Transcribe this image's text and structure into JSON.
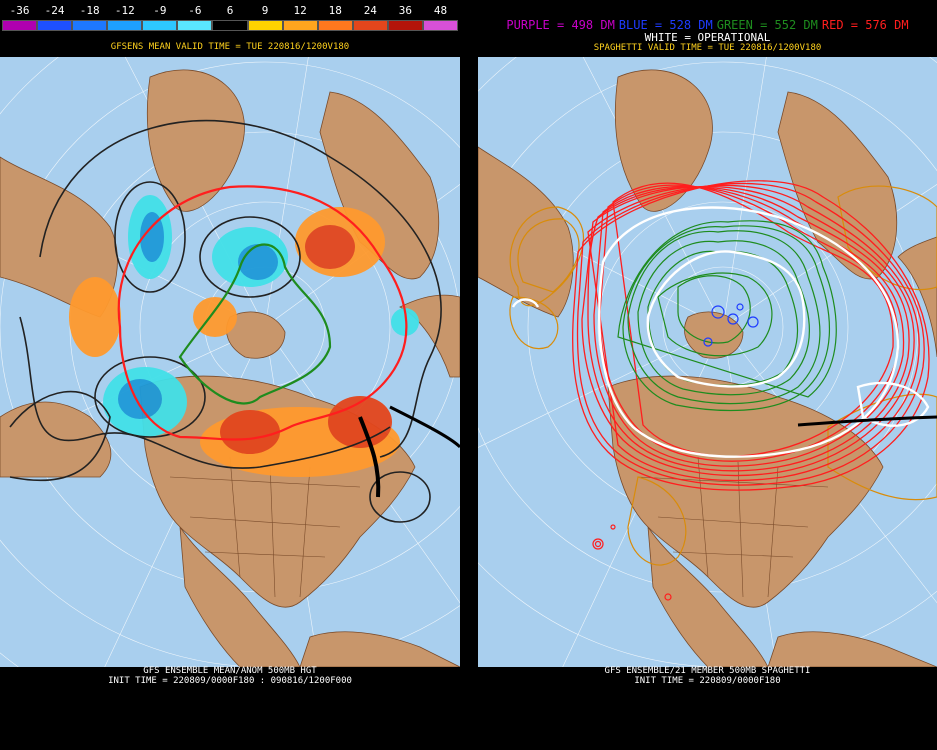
{
  "colors": {
    "ocean": "#a9cfee",
    "land": "#c8966b",
    "border": "#7a4b2a",
    "neg_strong": "#1e9ad8",
    "neg_light": "#42e0e8",
    "pos_light": "#ff9a2e",
    "pos_strong": "#e3461c",
    "contour": "#222222",
    "purple": "#c800c8",
    "blue": "#1e3cff",
    "green": "#1e8c1e",
    "red": "#ff1e1e",
    "white": "#ffffff",
    "gold": "#d98c0a"
  },
  "left": {
    "legend": {
      "labels": [
        "-36",
        "-24",
        "-18",
        "-12",
        "-9",
        "-6",
        "6",
        "9",
        "12",
        "18",
        "24",
        "36",
        "48"
      ],
      "colors": [
        "#b000b0",
        "#1e50ff",
        "#1e78ff",
        "#1ea0ff",
        "#2ec8ff",
        "#5ae6ff",
        "#000000",
        "#ffd200",
        "#ffa51e",
        "#ff781e",
        "#e3461c",
        "#b4140a",
        "#d850d8"
      ]
    },
    "title": "GFSENS MEAN VALID TIME = TUE 220816/1200V180",
    "footer_line1": "GFS ENSEMBLE MEAN/ANOM 500MB HGT",
    "footer_line2": "INIT TIME = 220809/0000F180 : 090816/1200F000"
  },
  "right": {
    "legend": [
      {
        "text": "PURPLE = 498 DM",
        "color": "#c800c8"
      },
      {
        "text": "BLUE = 528 DM",
        "color": "#1e3cff"
      },
      {
        "text": "GREEN = 552 DM",
        "color": "#1e8c1e"
      },
      {
        "text": "RED = 576 DM",
        "color": "#ff1e1e"
      }
    ],
    "operational": "WHITE = OPERATIONAL",
    "title": "SPAGHETTI VALID TIME = TUE 220816/1200V180",
    "footer_line1": "GFS ENSEMBLE/21 MEMBER 500MB SPAGHETTI",
    "footer_line2": "INIT TIME = 220809/0000F180"
  }
}
